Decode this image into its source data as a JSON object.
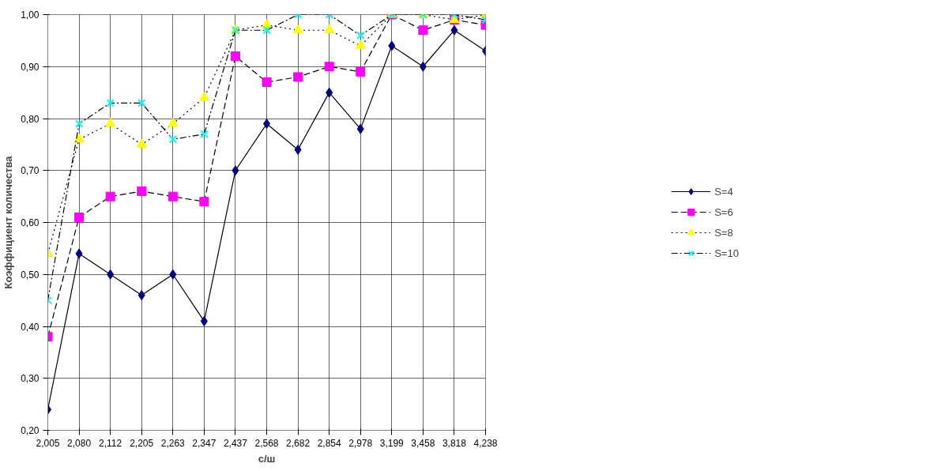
{
  "chart_data": {
    "type": "line",
    "xlabel": "с/ш",
    "ylabel": "Коэффициент количества",
    "categories": [
      "2,005",
      "2,080",
      "2,112",
      "2,205",
      "2,263",
      "2,347",
      "2,437",
      "2,568",
      "2,682",
      "2,854",
      "2,978",
      "3,199",
      "3,458",
      "3,818",
      "4,238"
    ],
    "series": [
      {
        "name": "S=4",
        "color": "#000080",
        "marker": "diamond",
        "line_style": "solid",
        "values": [
          0.24,
          0.54,
          0.5,
          0.46,
          0.5,
          0.41,
          0.7,
          0.79,
          0.74,
          0.85,
          0.78,
          0.94,
          0.9,
          0.97,
          0.93
        ]
      },
      {
        "name": "S=6",
        "color": "#ff00ff",
        "marker": "square",
        "line_style": "dashed",
        "values": [
          0.38,
          0.61,
          0.65,
          0.66,
          0.65,
          0.64,
          0.92,
          0.87,
          0.88,
          0.9,
          0.89,
          1.0,
          0.97,
          0.99,
          0.98
        ]
      },
      {
        "name": "S=8",
        "color": "#ffff00",
        "marker": "triangle",
        "line_style": "dotted",
        "values": [
          0.54,
          0.76,
          0.79,
          0.75,
          0.79,
          0.84,
          0.97,
          0.98,
          0.97,
          0.97,
          0.94,
          1.0,
          1.0,
          0.99,
          1.0
        ]
      },
      {
        "name": "S=10",
        "color": "#00ffff",
        "marker": "cross",
        "line_style": "dashdot",
        "values": [
          0.45,
          0.79,
          0.83,
          0.83,
          0.76,
          0.77,
          0.97,
          0.97,
          1.0,
          1.0,
          0.96,
          1.0,
          1.0,
          1.0,
          0.99
        ]
      }
    ],
    "ylim": [
      0.2,
      1.0
    ],
    "yticks": [
      {
        "value": 0.2,
        "label": "0,20"
      },
      {
        "value": 0.3,
        "label": "0,30"
      },
      {
        "value": 0.4,
        "label": "0,40"
      },
      {
        "value": 0.5,
        "label": "0,50"
      },
      {
        "value": 0.6,
        "label": "0,60"
      },
      {
        "value": 0.7,
        "label": "0,70"
      },
      {
        "value": 0.8,
        "label": "0,80"
      },
      {
        "value": 0.9,
        "label": "0,90"
      },
      {
        "value": 1.0,
        "label": "1,00"
      }
    ],
    "grid": true,
    "legend": "right"
  }
}
